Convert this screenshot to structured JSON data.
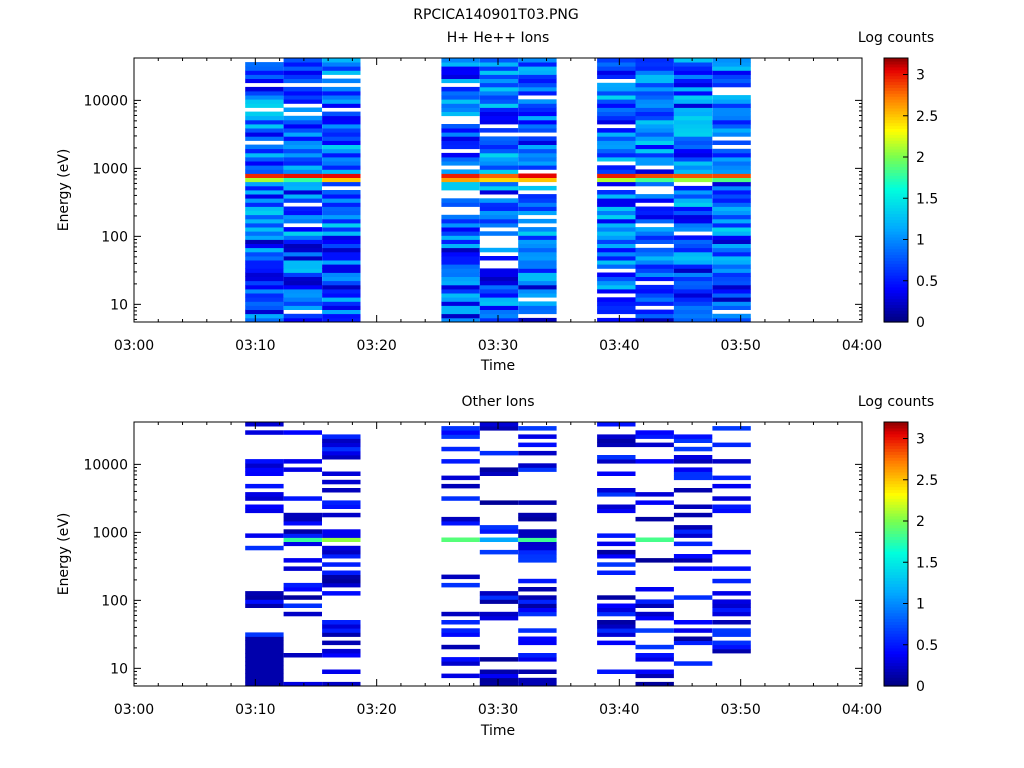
{
  "figure": {
    "title": "RPCICA140901T03.PNG"
  },
  "chart_data": [
    {
      "type": "heatmap",
      "title": "H+ He++ Ions",
      "xlabel": "Time",
      "ylabel": "Energy (eV)",
      "x_ticks": [
        "03:00",
        "03:10",
        "03:20",
        "03:30",
        "03:40",
        "03:50",
        "04:00"
      ],
      "x_range": [
        "03:00",
        "04:00"
      ],
      "y_scale": "log",
      "y_ticks": [
        "10",
        "100",
        "1000",
        "10000"
      ],
      "y_range": [
        5.5,
        42000
      ],
      "colorbar": {
        "label": "Log counts",
        "ticks": [
          "0",
          "0.5",
          "1",
          "1.5",
          "2",
          "2.5",
          "3"
        ],
        "range": [
          0,
          3.2
        ]
      },
      "time_columns": [
        {
          "start": "03:09:10",
          "end": "03:12:20"
        },
        {
          "start": "03:12:20",
          "end": "03:15:30"
        },
        {
          "start": "03:15:30",
          "end": "03:18:40"
        },
        {
          "start": "03:25:20",
          "end": "03:28:30"
        },
        {
          "start": "03:28:30",
          "end": "03:31:40"
        },
        {
          "start": "03:31:40",
          "end": "03:34:50"
        },
        {
          "start": "03:38:10",
          "end": "03:41:20"
        },
        {
          "start": "03:41:20",
          "end": "03:44:30"
        },
        {
          "start": "03:44:30",
          "end": "03:47:40"
        },
        {
          "start": "03:47:40",
          "end": "03:50:50"
        }
      ]
    },
    {
      "type": "heatmap",
      "title": "Other Ions",
      "xlabel": "Time",
      "ylabel": "Energy (eV)",
      "x_ticks": [
        "03:00",
        "03:10",
        "03:20",
        "03:30",
        "03:40",
        "03:50",
        "04:00"
      ],
      "x_range": [
        "03:00",
        "04:00"
      ],
      "y_scale": "log",
      "y_ticks": [
        "10",
        "100",
        "1000",
        "10000"
      ],
      "y_range": [
        5.5,
        42000
      ],
      "colorbar": {
        "label": "Log counts",
        "ticks": [
          "0",
          "0.5",
          "1",
          "1.5",
          "2",
          "2.5",
          "3"
        ],
        "range": [
          0,
          3.2
        ]
      },
      "time_columns": [
        {
          "start": "03:09:10",
          "end": "03:12:20"
        },
        {
          "start": "03:12:20",
          "end": "03:15:30"
        },
        {
          "start": "03:15:30",
          "end": "03:18:40"
        },
        {
          "start": "03:25:20",
          "end": "03:28:30"
        },
        {
          "start": "03:28:30",
          "end": "03:31:40"
        },
        {
          "start": "03:31:40",
          "end": "03:34:50"
        },
        {
          "start": "03:38:10",
          "end": "03:41:20"
        },
        {
          "start": "03:41:20",
          "end": "03:44:30"
        },
        {
          "start": "03:44:30",
          "end": "03:47:40"
        },
        {
          "start": "03:47:40",
          "end": "03:50:50"
        }
      ]
    }
  ]
}
